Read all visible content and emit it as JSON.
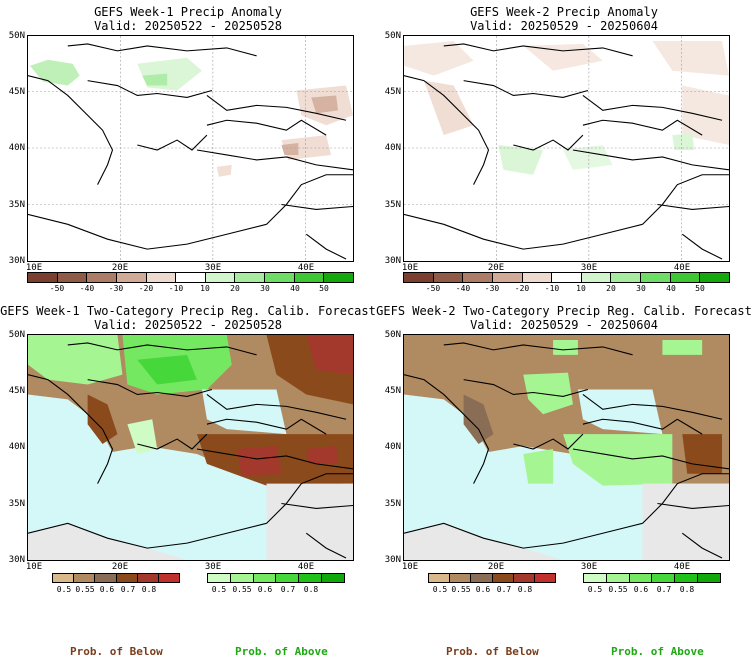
{
  "panels": [
    {
      "title": "GEFS Week-1 Precip Anomaly",
      "valid": "Valid: 20250522 - 20250528"
    },
    {
      "title": "GEFS Week-2 Precip Anomaly",
      "valid": "Valid: 20250529 - 20250604"
    },
    {
      "title": "GEFS Week-1 Two-Category Precip Reg. Calib. Forecast",
      "valid": "Valid: 20250522 - 20250528"
    },
    {
      "title": "GEFS Week-2 Two-Category Precip Reg. Calib. Forecast",
      "valid": "Valid: 20250529 - 20250604"
    }
  ],
  "lat_labels": [
    "50N",
    "45N",
    "40N",
    "35N",
    "30N"
  ],
  "lon_labels": [
    "10E",
    "20E",
    "30E",
    "40E"
  ],
  "anomaly_scale": {
    "ticks": [
      "-50",
      "-40",
      "-30",
      "-20",
      "-10",
      "10",
      "20",
      "30",
      "40",
      "50"
    ],
    "colors": [
      "#7a3f2e",
      "#8f5a46",
      "#ad7c66",
      "#d1aa98",
      "#efdacf",
      "#ffffff",
      "#d2f5ce",
      "#a6eb9f",
      "#6fdc66",
      "#3fc634",
      "#15a80c"
    ]
  },
  "prob_below_scale": {
    "ticks": [
      "0.5",
      "0.55",
      "0.6",
      "0.7",
      "0.8"
    ],
    "colors": [
      "#d9b98a",
      "#b08a60",
      "#8a6d55",
      "#8b4a1c",
      "#a3382c",
      "#c0302c"
    ]
  },
  "prob_above_scale": {
    "ticks": [
      "0.5",
      "0.55",
      "0.6",
      "0.7",
      "0.8"
    ],
    "colors": [
      "#cffcc4",
      "#a6f593",
      "#74e860",
      "#46d83a",
      "#20c219",
      "#10a80a"
    ]
  },
  "footer": {
    "below": "Prob. of Below",
    "above": "Prob. of Above"
  },
  "colors": {
    "sea": "#d4f7f7",
    "nodata_land": "#e8e8e8",
    "border": "#000000"
  }
}
